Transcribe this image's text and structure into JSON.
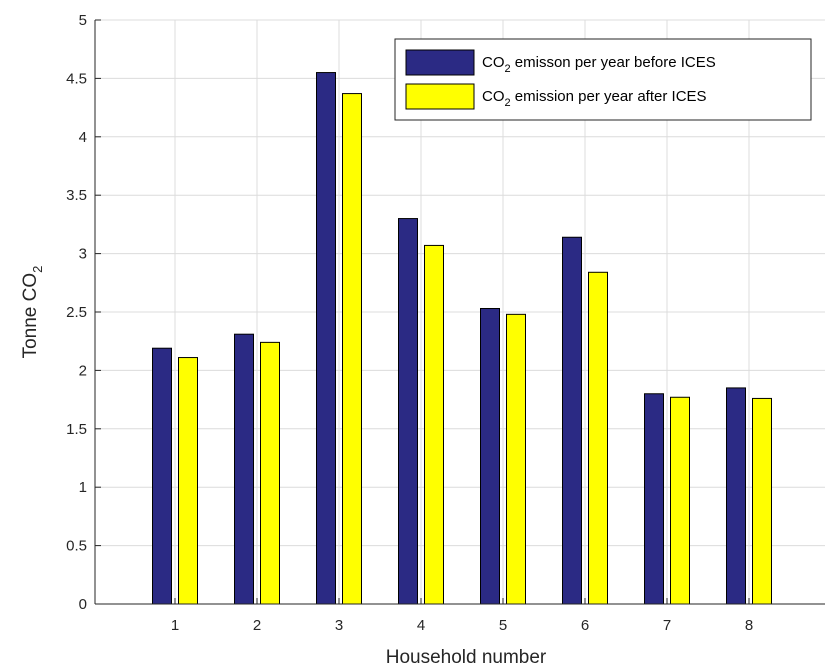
{
  "chart_data": {
    "type": "bar",
    "categories": [
      "1",
      "2",
      "3",
      "4",
      "5",
      "6",
      "7",
      "8"
    ],
    "series": [
      {
        "name_parts": [
          "CO",
          "2",
          " emisson per year before ICES"
        ],
        "color": "#2b2a84",
        "values": [
          2.19,
          2.31,
          4.55,
          3.3,
          2.53,
          3.14,
          1.8,
          1.85
        ]
      },
      {
        "name_parts": [
          "CO",
          "2",
          " emission per year after ICES"
        ],
        "color": "#ffff00",
        "values": [
          2.11,
          2.24,
          4.37,
          3.07,
          2.48,
          2.84,
          1.77,
          1.76
        ]
      }
    ],
    "xlabel": "Household number",
    "ylabel_parts": [
      "Tonne CO",
      "2"
    ],
    "ylim": [
      0,
      5
    ],
    "yticks": [
      "0",
      "0.5",
      "1",
      "1.5",
      "2",
      "2.5",
      "3",
      "3.5",
      "4",
      "4.5",
      "5"
    ],
    "grid": true,
    "legend": "top-right"
  }
}
